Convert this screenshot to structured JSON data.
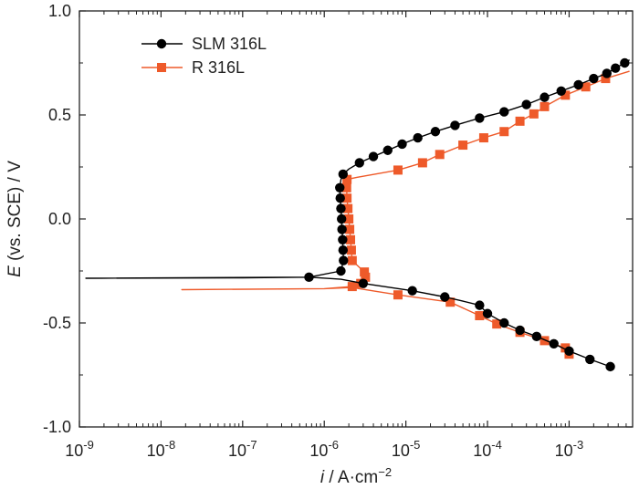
{
  "chart_data": {
    "type": "line",
    "xscale": "log",
    "xlim": [
      1e-09,
      0.006
    ],
    "ylim": [
      -1.0,
      1.0
    ],
    "xlabel": {
      "italic": "i",
      "rest": " / A·cm",
      "sup": "−2"
    },
    "ylabel": {
      "italic": "E",
      "rest": " (vs. SCE) / V"
    },
    "x_ticks": [
      {
        "value": 1e-09,
        "base": "10",
        "exp": "-9"
      },
      {
        "value": 1e-08,
        "base": "10",
        "exp": "-8"
      },
      {
        "value": 1e-07,
        "base": "10",
        "exp": "-7"
      },
      {
        "value": 1e-06,
        "base": "10",
        "exp": "-6"
      },
      {
        "value": 1e-05,
        "base": "10",
        "exp": "-5"
      },
      {
        "value": 0.0001,
        "base": "10",
        "exp": "-4"
      },
      {
        "value": 0.001,
        "base": "10",
        "exp": "-3"
      }
    ],
    "y_ticks": [
      {
        "value": 1.0,
        "label": "1.0"
      },
      {
        "value": 0.5,
        "label": "0.5"
      },
      {
        "value": 0.0,
        "label": "0.0"
      },
      {
        "value": -0.5,
        "label": "-0.5"
      },
      {
        "value": -1.0,
        "label": "-1.0"
      }
    ],
    "grid": false,
    "legend_position": "top-left",
    "series": [
      {
        "name": "SLM 316L",
        "color": "#000000",
        "marker": "circle",
        "points": [
          [
            0.0032,
            -0.71
          ],
          [
            0.0018,
            -0.675
          ],
          [
            0.001,
            -0.635
          ],
          [
            0.00065,
            -0.6
          ],
          [
            0.0004,
            -0.565
          ],
          [
            0.00025,
            -0.535
          ],
          [
            0.00016,
            -0.5
          ],
          [
            0.0001,
            -0.455
          ],
          [
            8e-05,
            -0.415
          ],
          [
            5e-05,
            -0.395
          ],
          [
            3e-05,
            -0.375
          ],
          [
            1.2e-05,
            -0.345
          ],
          [
            3e-06,
            -0.31
          ],
          [
            1.6e-06,
            -0.29
          ],
          [
            6.5e-07,
            -0.28
          ],
          [
            1e-07,
            -0.283
          ],
          [
            1.2e-09,
            -0.285
          ],
          [
            6.5e-07,
            -0.28
          ],
          [
            1.6e-06,
            -0.25
          ],
          [
            1.72e-06,
            -0.2
          ],
          [
            1.7e-06,
            -0.15
          ],
          [
            1.68e-06,
            -0.1
          ],
          [
            1.65e-06,
            -0.05
          ],
          [
            1.63e-06,
            0.0
          ],
          [
            1.6e-06,
            0.05
          ],
          [
            1.57e-06,
            0.1
          ],
          [
            1.55e-06,
            0.15
          ],
          [
            1.6e-06,
            0.19
          ],
          [
            1.7e-06,
            0.215
          ],
          [
            2e-06,
            0.24
          ],
          [
            2.7e-06,
            0.27
          ],
          [
            4e-06,
            0.3
          ],
          [
            6e-06,
            0.33
          ],
          [
            9e-06,
            0.36
          ],
          [
            1.4e-05,
            0.39
          ],
          [
            2.3e-05,
            0.42
          ],
          [
            4e-05,
            0.45
          ],
          [
            8e-05,
            0.485
          ],
          [
            0.00016,
            0.515
          ],
          [
            0.0003,
            0.55
          ],
          [
            0.0005,
            0.585
          ],
          [
            0.0008,
            0.615
          ],
          [
            0.0013,
            0.645
          ],
          [
            0.002,
            0.675
          ],
          [
            0.0029,
            0.7
          ],
          [
            0.0037,
            0.725
          ],
          [
            0.0048,
            0.75
          ],
          [
            0.0055,
            0.765
          ]
        ],
        "markers": [
          [
            0.0032,
            -0.71
          ],
          [
            0.0018,
            -0.675
          ],
          [
            0.001,
            -0.635
          ],
          [
            0.00065,
            -0.6
          ],
          [
            0.0004,
            -0.565
          ],
          [
            0.00025,
            -0.535
          ],
          [
            0.00016,
            -0.5
          ],
          [
            0.0001,
            -0.455
          ],
          [
            8e-05,
            -0.415
          ],
          [
            3e-05,
            -0.375
          ],
          [
            1.2e-05,
            -0.345
          ],
          [
            3e-06,
            -0.31
          ],
          [
            6.5e-07,
            -0.28
          ],
          [
            1.6e-06,
            -0.25
          ],
          [
            1.72e-06,
            -0.2
          ],
          [
            1.7e-06,
            -0.15
          ],
          [
            1.68e-06,
            -0.1
          ],
          [
            1.65e-06,
            -0.05
          ],
          [
            1.63e-06,
            0.0
          ],
          [
            1.6e-06,
            0.05
          ],
          [
            1.57e-06,
            0.1
          ],
          [
            1.55e-06,
            0.15
          ],
          [
            1.7e-06,
            0.215
          ],
          [
            2.7e-06,
            0.27
          ],
          [
            4e-06,
            0.3
          ],
          [
            6e-06,
            0.33
          ],
          [
            9e-06,
            0.36
          ],
          [
            1.4e-05,
            0.39
          ],
          [
            2.3e-05,
            0.42
          ],
          [
            4e-05,
            0.45
          ],
          [
            8e-05,
            0.485
          ],
          [
            0.00016,
            0.515
          ],
          [
            0.0003,
            0.55
          ],
          [
            0.0005,
            0.585
          ],
          [
            0.0008,
            0.615
          ],
          [
            0.0013,
            0.645
          ],
          [
            0.002,
            0.675
          ],
          [
            0.0029,
            0.7
          ],
          [
            0.0037,
            0.725
          ],
          [
            0.0048,
            0.75
          ]
        ]
      },
      {
        "name": "R 316L",
        "color": "#ee5a2a",
        "marker": "square",
        "points": [
          [
            0.001,
            -0.65
          ],
          [
            0.0009,
            -0.62
          ],
          [
            0.0005,
            -0.585
          ],
          [
            0.00025,
            -0.545
          ],
          [
            0.00013,
            -0.505
          ],
          [
            8e-05,
            -0.465
          ],
          [
            3.5e-05,
            -0.4
          ],
          [
            8e-06,
            -0.365
          ],
          [
            2.2e-06,
            -0.33
          ],
          [
            1e-06,
            -0.335
          ],
          [
            1.8e-08,
            -0.34
          ],
          [
            1e-06,
            -0.335
          ],
          [
            2.2e-06,
            -0.325
          ],
          [
            2.8e-06,
            -0.31
          ],
          [
            3.2e-06,
            -0.28
          ],
          [
            3.1e-06,
            -0.255
          ],
          [
            2.2e-06,
            -0.2
          ],
          [
            2.15e-06,
            -0.15
          ],
          [
            2.1e-06,
            -0.1
          ],
          [
            2.05e-06,
            -0.05
          ],
          [
            2e-06,
            0.0
          ],
          [
            1.95e-06,
            0.05
          ],
          [
            1.9e-06,
            0.1
          ],
          [
            1.88e-06,
            0.15
          ],
          [
            1.9e-06,
            0.19
          ],
          [
            2.5e-06,
            0.2
          ],
          [
            8e-06,
            0.235
          ],
          [
            1.6e-05,
            0.27
          ],
          [
            2.6e-05,
            0.31
          ],
          [
            5e-05,
            0.355
          ],
          [
            9e-05,
            0.39
          ],
          [
            0.00016,
            0.42
          ],
          [
            0.00025,
            0.47
          ],
          [
            0.00037,
            0.505
          ],
          [
            0.0005,
            0.54
          ],
          [
            0.0009,
            0.595
          ],
          [
            0.0016,
            0.635
          ],
          [
            0.0028,
            0.675
          ],
          [
            0.0055,
            0.71
          ]
        ],
        "markers": [
          [
            0.001,
            -0.65
          ],
          [
            0.0009,
            -0.62
          ],
          [
            0.0005,
            -0.585
          ],
          [
            0.00025,
            -0.545
          ],
          [
            0.00013,
            -0.505
          ],
          [
            8e-05,
            -0.465
          ],
          [
            3.5e-05,
            -0.4
          ],
          [
            8e-06,
            -0.365
          ],
          [
            2.2e-06,
            -0.325
          ],
          [
            2.8e-06,
            -0.31
          ],
          [
            3.2e-06,
            -0.28
          ],
          [
            3.1e-06,
            -0.255
          ],
          [
            2.2e-06,
            -0.2
          ],
          [
            2.15e-06,
            -0.15
          ],
          [
            2.1e-06,
            -0.1
          ],
          [
            2.05e-06,
            -0.05
          ],
          [
            2e-06,
            0.0
          ],
          [
            1.95e-06,
            0.05
          ],
          [
            1.9e-06,
            0.1
          ],
          [
            1.88e-06,
            0.15
          ],
          [
            1.9e-06,
            0.19
          ],
          [
            8e-06,
            0.235
          ],
          [
            1.6e-05,
            0.27
          ],
          [
            2.6e-05,
            0.31
          ],
          [
            5e-05,
            0.355
          ],
          [
            9e-05,
            0.39
          ],
          [
            0.00016,
            0.42
          ],
          [
            0.00025,
            0.47
          ],
          [
            0.00037,
            0.505
          ],
          [
            0.0005,
            0.54
          ],
          [
            0.0009,
            0.595
          ],
          [
            0.0016,
            0.635
          ],
          [
            0.0028,
            0.675
          ]
        ]
      }
    ]
  }
}
